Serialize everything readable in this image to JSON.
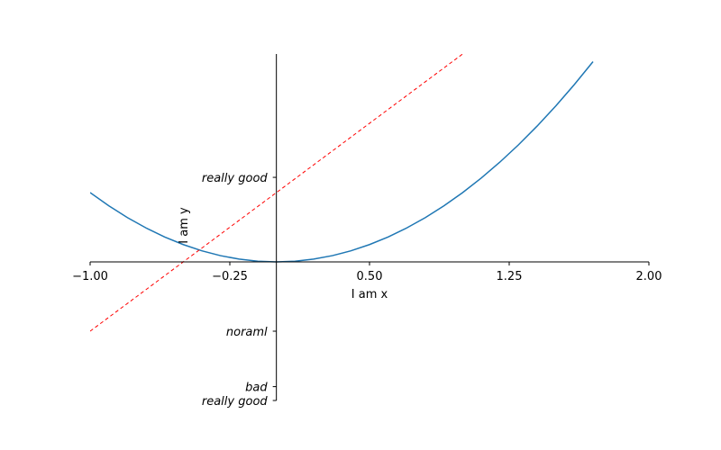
{
  "chart_data": {
    "type": "line",
    "xlabel": "I am x",
    "ylabel": "I am y",
    "xlim": [
      -1,
      2
    ],
    "ylim": [
      -2,
      3
    ],
    "xticks": [
      -1.0,
      -0.25,
      0.5,
      1.25,
      2.0
    ],
    "xtick_labels": [
      "−1.00",
      "−0.25",
      "0.50",
      "1.25",
      "2.00"
    ],
    "yticks": [
      {
        "value": -2.0,
        "label": "really good"
      },
      {
        "value": -1.8,
        "label": "bad"
      },
      {
        "value": -1.0,
        "label": "noraml"
      },
      {
        "value": 1.22,
        "label": "really good"
      }
    ],
    "spines": "centered at origin (left spine at x=0, bottom spine at y=0)",
    "grid": false,
    "series": [
      {
        "style": "solid",
        "color": "#1f77b4",
        "x": [
          -1.0,
          -0.9,
          -0.8,
          -0.7,
          -0.6,
          -0.5,
          -0.4,
          -0.3,
          -0.2,
          -0.1,
          0.0,
          0.1,
          0.2,
          0.3,
          0.4,
          0.5,
          0.6,
          0.7,
          0.8,
          0.9,
          1.0,
          1.1,
          1.2,
          1.3,
          1.4,
          1.5,
          1.6,
          1.7
        ],
        "y": [
          1.0,
          0.81,
          0.64,
          0.49,
          0.36,
          0.25,
          0.16,
          0.09,
          0.04,
          0.01,
          0.0,
          0.01,
          0.04,
          0.09,
          0.16,
          0.25,
          0.36,
          0.49,
          0.64,
          0.81,
          1.0,
          1.21,
          1.44,
          1.69,
          1.96,
          2.25,
          2.56,
          2.89
        ]
      },
      {
        "style": "dashed",
        "color": "#ff0000",
        "x": [
          -1.0,
          1.0
        ],
        "y": [
          -1.0,
          3.0
        ]
      }
    ]
  }
}
